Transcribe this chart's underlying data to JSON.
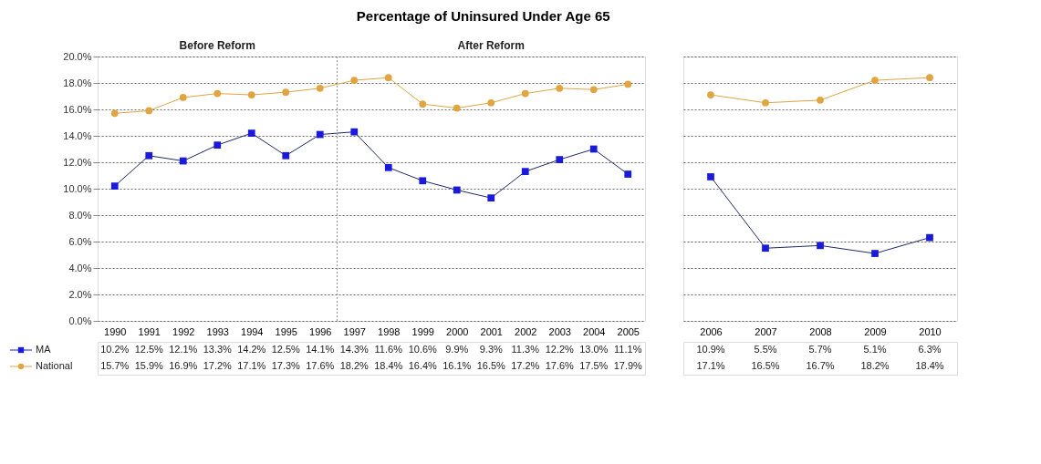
{
  "chart_data": [
    {
      "type": "line",
      "title": "Percentage of Uninsured Under Age 65",
      "annotations": [
        "Before Reform",
        "After Reform"
      ],
      "categories": [
        "1990",
        "1991",
        "1992",
        "1993",
        "1994",
        "1995",
        "1996",
        "1997",
        "1998",
        "1999",
        "2000",
        "2001",
        "2002",
        "2003",
        "2004",
        "2005"
      ],
      "series": [
        {
          "name": "MA",
          "color": "#1a1adc",
          "marker": "square",
          "values": [
            10.2,
            12.5,
            12.1,
            13.3,
            14.2,
            12.5,
            14.1,
            14.3,
            11.6,
            10.6,
            9.9,
            9.3,
            11.3,
            12.2,
            13.0,
            11.1
          ],
          "value_labels": [
            "10.2%",
            "12.5%",
            "12.1%",
            "13.3%",
            "14.2%",
            "12.5%",
            "14.1%",
            "14.3%",
            "11.6%",
            "10.6%",
            "9.9%",
            "9.3%",
            "11.3%",
            "12.2%",
            "13.0%",
            "11.1%"
          ]
        },
        {
          "name": "National",
          "color": "#e0a540",
          "marker": "circle",
          "values": [
            15.7,
            15.9,
            16.9,
            17.2,
            17.1,
            17.3,
            17.6,
            18.2,
            18.4,
            16.4,
            16.1,
            16.5,
            17.2,
            17.6,
            17.5,
            17.9
          ],
          "value_labels": [
            "15.7%",
            "15.9%",
            "16.9%",
            "17.2%",
            "17.1%",
            "17.3%",
            "17.6%",
            "18.2%",
            "18.4%",
            "16.4%",
            "16.1%",
            "16.5%",
            "17.2%",
            "17.6%",
            "17.5%",
            "17.9%"
          ]
        }
      ],
      "ylim": [
        0,
        20
      ],
      "yticks": [
        {
          "value": 0,
          "label": "0.0%"
        },
        {
          "value": 2,
          "label": "2.0%"
        },
        {
          "value": 4,
          "label": "4.0%"
        },
        {
          "value": 6,
          "label": "6.0%"
        },
        {
          "value": 8,
          "label": "8.0%"
        },
        {
          "value": 10,
          "label": "10.0%"
        },
        {
          "value": 12,
          "label": "12.0%"
        },
        {
          "value": 14,
          "label": "14.0%"
        },
        {
          "value": 16,
          "label": "16.0%"
        },
        {
          "value": 18,
          "label": "18.0%"
        },
        {
          "value": 20,
          "label": "20.0%"
        }
      ],
      "ref_lines": [
        {
          "axis": "x",
          "value": "1997",
          "color": "#999999",
          "line_style": "dotted"
        }
      ],
      "grid": "y",
      "legend": "bottom left",
      "line_style": "solid"
    },
    {
      "type": "line",
      "categories": [
        "2006",
        "2007",
        "2008",
        "2009",
        "2010"
      ],
      "series": [
        {
          "color": "#1a1adc",
          "marker": "square",
          "values": [
            10.9,
            5.5,
            5.7,
            5.1,
            6.3
          ],
          "value_labels": [
            "10.9%",
            "5.5%",
            "5.7%",
            "5.1%",
            "6.3%"
          ]
        },
        {
          "color": "#e0a540",
          "marker": "circle",
          "values": [
            17.1,
            16.5,
            16.7,
            18.2,
            18.4
          ],
          "value_labels": [
            "17.1%",
            "16.5%",
            "16.7%",
            "18.2%",
            "18.4%"
          ]
        }
      ],
      "ylim": [
        0,
        20
      ],
      "yticks": [
        0,
        2,
        4,
        6,
        8,
        10,
        12,
        14,
        16,
        18,
        20
      ],
      "grid": "y",
      "legend": false,
      "tick_labels": "x",
      "line_style": "solid"
    }
  ]
}
